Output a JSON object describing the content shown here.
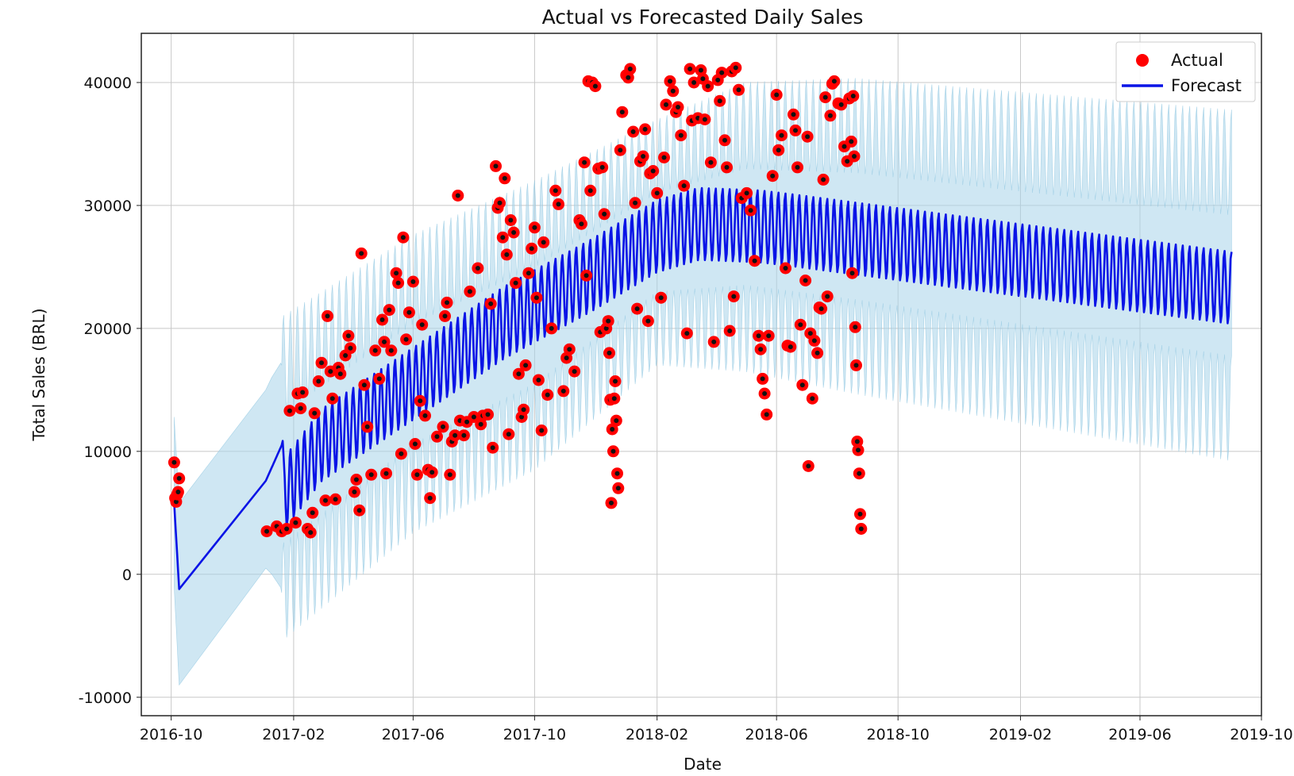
{
  "chart_data": {
    "type": "line",
    "title": "Actual vs Forecasted Daily Sales",
    "xlabel": "Date",
    "ylabel": "Total Sales (BRL)",
    "x_tick_labels": [
      "2016-10",
      "2017-02",
      "2017-06",
      "2017-10",
      "2018-02",
      "2018-06",
      "2018-10",
      "2019-02",
      "2019-06",
      "2019-10"
    ],
    "y_tick_labels": [
      "-10000",
      "0",
      "10000",
      "20000",
      "30000",
      "40000"
    ],
    "y_ticks": [
      -10000,
      0,
      10000,
      20000,
      30000,
      40000
    ],
    "xlim": [
      "2016-09-01",
      "2019-10-01"
    ],
    "ylim": [
      -11500,
      44000
    ],
    "grid": true,
    "legend_position": "top-right",
    "legend": [
      "Actual",
      "Forecast"
    ],
    "colors": {
      "actual_fill": "#ff0000",
      "actual_center": "#111111",
      "forecast_line": "#0a14e6",
      "interval_band": "#a8d4ea"
    },
    "series": [
      {
        "name": "Forecast",
        "kind": "line",
        "x": [
          "2016-10-04",
          "2016-10-09",
          "2017-01-04",
          "2017-01-20",
          "2017-01-22",
          "2017-03-01",
          "2017-06-01",
          "2017-09-01",
          "2017-11-20",
          "2017-12-01",
          "2018-02-01",
          "2018-03-15",
          "2018-05-15",
          "2018-06-15",
          "2018-08-20",
          "2019-09-01"
        ],
        "y": [
          5800,
          -1200,
          7600,
          10500,
          6500,
          10500,
          15500,
          20500,
          24000,
          24500,
          27500,
          28500,
          28300,
          28000,
          27300,
          23300
        ],
        "weekly_amplitude": 3000
      },
      {
        "name": "Uncertainty interval",
        "kind": "band",
        "x": [
          "2016-10-04",
          "2016-10-09",
          "2017-01-04",
          "2017-01-20",
          "2017-06-01",
          "2017-10-01",
          "2018-02-01",
          "2018-05-01",
          "2018-08-20",
          "2019-09-01"
        ],
        "upper": [
          12800,
          5800,
          15000,
          17000,
          24000,
          28500,
          34000,
          36500,
          36500,
          33500
        ],
        "lower": [
          -1000,
          -9000,
          500,
          -1500,
          7000,
          12000,
          20000,
          20000,
          18500,
          13500
        ]
      },
      {
        "name": "Actual",
        "kind": "scatter",
        "points": [
          [
            "2016-10-04",
            9100
          ],
          [
            "2016-10-05",
            6200
          ],
          [
            "2016-10-06",
            5900
          ],
          [
            "2016-10-07",
            6500
          ],
          [
            "2016-10-08",
            6700
          ],
          [
            "2016-10-09",
            7800
          ],
          [
            "2017-01-05",
            3500
          ],
          [
            "2017-01-15",
            3900
          ],
          [
            "2017-01-20",
            3500
          ],
          [
            "2017-01-25",
            3700
          ],
          [
            "2017-01-28",
            13300
          ],
          [
            "2017-02-03",
            4200
          ],
          [
            "2017-02-05",
            14700
          ],
          [
            "2017-02-08",
            13500
          ],
          [
            "2017-02-10",
            14800
          ],
          [
            "2017-02-15",
            3700
          ],
          [
            "2017-02-18",
            3400
          ],
          [
            "2017-02-20",
            5000
          ],
          [
            "2017-02-22",
            13100
          ],
          [
            "2017-02-26",
            15700
          ],
          [
            "2017-03-01",
            17200
          ],
          [
            "2017-03-05",
            6000
          ],
          [
            "2017-03-07",
            21000
          ],
          [
            "2017-03-10",
            16500
          ],
          [
            "2017-03-12",
            14300
          ],
          [
            "2017-03-15",
            6100
          ],
          [
            "2017-03-18",
            16800
          ],
          [
            "2017-03-20",
            16300
          ],
          [
            "2017-03-25",
            17800
          ],
          [
            "2017-03-28",
            19400
          ],
          [
            "2017-03-30",
            18400
          ],
          [
            "2017-04-03",
            6700
          ],
          [
            "2017-04-05",
            7700
          ],
          [
            "2017-04-08",
            5200
          ],
          [
            "2017-04-10",
            26100
          ],
          [
            "2017-04-13",
            15400
          ],
          [
            "2017-04-16",
            12000
          ],
          [
            "2017-04-20",
            8100
          ],
          [
            "2017-04-24",
            18200
          ],
          [
            "2017-04-28",
            15900
          ],
          [
            "2017-05-01",
            20700
          ],
          [
            "2017-05-03",
            18900
          ],
          [
            "2017-05-05",
            8200
          ],
          [
            "2017-05-08",
            21500
          ],
          [
            "2017-05-10",
            18200
          ],
          [
            "2017-05-15",
            24500
          ],
          [
            "2017-05-17",
            23700
          ],
          [
            "2017-05-20",
            9800
          ],
          [
            "2017-05-22",
            27400
          ],
          [
            "2017-05-25",
            19100
          ],
          [
            "2017-05-28",
            21300
          ],
          [
            "2017-06-01",
            23800
          ],
          [
            "2017-06-03",
            10600
          ],
          [
            "2017-06-05",
            8100
          ],
          [
            "2017-06-08",
            14100
          ],
          [
            "2017-06-10",
            20300
          ],
          [
            "2017-06-13",
            12900
          ],
          [
            "2017-06-16",
            8500
          ],
          [
            "2017-06-18",
            6200
          ],
          [
            "2017-06-20",
            8300
          ],
          [
            "2017-06-25",
            11200
          ],
          [
            "2017-07-01",
            12000
          ],
          [
            "2017-07-03",
            21000
          ],
          [
            "2017-07-05",
            22100
          ],
          [
            "2017-07-08",
            8100
          ],
          [
            "2017-07-10",
            10800
          ],
          [
            "2017-07-13",
            11300
          ],
          [
            "2017-07-16",
            30800
          ],
          [
            "2017-07-18",
            12500
          ],
          [
            "2017-07-22",
            11300
          ],
          [
            "2017-07-25",
            12400
          ],
          [
            "2017-07-28",
            23000
          ],
          [
            "2017-08-01",
            12800
          ],
          [
            "2017-08-05",
            24900
          ],
          [
            "2017-08-08",
            12200
          ],
          [
            "2017-08-10",
            12900
          ],
          [
            "2017-08-15",
            13000
          ],
          [
            "2017-08-18",
            22000
          ],
          [
            "2017-08-20",
            10300
          ],
          [
            "2017-08-23",
            33200
          ],
          [
            "2017-08-25",
            29800
          ],
          [
            "2017-08-27",
            30200
          ],
          [
            "2017-08-30",
            27400
          ],
          [
            "2017-09-01",
            32200
          ],
          [
            "2017-09-03",
            26000
          ],
          [
            "2017-09-05",
            11400
          ],
          [
            "2017-09-07",
            28800
          ],
          [
            "2017-09-10",
            27800
          ],
          [
            "2017-09-12",
            23700
          ],
          [
            "2017-09-15",
            16300
          ],
          [
            "2017-09-18",
            12800
          ],
          [
            "2017-09-20",
            13400
          ],
          [
            "2017-09-22",
            17000
          ],
          [
            "2017-09-25",
            24500
          ],
          [
            "2017-09-28",
            26500
          ],
          [
            "2017-10-01",
            28200
          ],
          [
            "2017-10-03",
            22500
          ],
          [
            "2017-10-05",
            15800
          ],
          [
            "2017-10-08",
            11700
          ],
          [
            "2017-10-10",
            27000
          ],
          [
            "2017-10-14",
            14600
          ],
          [
            "2017-10-18",
            20000
          ],
          [
            "2017-10-22",
            31200
          ],
          [
            "2017-10-25",
            30100
          ],
          [
            "2017-10-30",
            14900
          ],
          [
            "2017-11-02",
            17600
          ],
          [
            "2017-11-05",
            18300
          ],
          [
            "2017-11-10",
            16500
          ],
          [
            "2017-11-15",
            28800
          ],
          [
            "2017-11-17",
            28500
          ],
          [
            "2017-11-20",
            33500
          ],
          [
            "2017-11-22",
            24300
          ],
          [
            "2017-11-24",
            40100
          ],
          [
            "2017-11-26",
            31200
          ],
          [
            "2017-11-28",
            40000
          ],
          [
            "2017-12-01",
            39700
          ],
          [
            "2017-12-04",
            33000
          ],
          [
            "2017-12-06",
            19700
          ],
          [
            "2017-12-08",
            33100
          ],
          [
            "2017-12-10",
            29300
          ],
          [
            "2017-12-12",
            20000
          ],
          [
            "2017-12-14",
            20600
          ],
          [
            "2017-12-15",
            18000
          ],
          [
            "2017-12-16",
            14200
          ],
          [
            "2017-12-17",
            5800
          ],
          [
            "2017-12-18",
            11800
          ],
          [
            "2017-12-19",
            10000
          ],
          [
            "2017-12-20",
            14300
          ],
          [
            "2017-12-21",
            15700
          ],
          [
            "2017-12-22",
            12500
          ],
          [
            "2017-12-23",
            8200
          ],
          [
            "2017-12-24",
            7000
          ],
          [
            "2017-12-26",
            34500
          ],
          [
            "2017-12-28",
            37600
          ],
          [
            "2018-01-01",
            40600
          ],
          [
            "2018-01-03",
            40400
          ],
          [
            "2018-01-05",
            41100
          ],
          [
            "2018-01-08",
            36000
          ],
          [
            "2018-01-10",
            30200
          ],
          [
            "2018-01-12",
            21600
          ],
          [
            "2018-01-15",
            33600
          ],
          [
            "2018-01-18",
            34000
          ],
          [
            "2018-01-20",
            36200
          ],
          [
            "2018-01-23",
            20600
          ],
          [
            "2018-01-25",
            32600
          ],
          [
            "2018-01-28",
            32800
          ],
          [
            "2018-02-01",
            31000
          ],
          [
            "2018-02-05",
            22500
          ],
          [
            "2018-02-08",
            33900
          ],
          [
            "2018-02-10",
            38200
          ],
          [
            "2018-02-14",
            40100
          ],
          [
            "2018-02-17",
            39300
          ],
          [
            "2018-02-20",
            37600
          ],
          [
            "2018-02-22",
            38000
          ],
          [
            "2018-02-25",
            35700
          ],
          [
            "2018-02-28",
            31600
          ],
          [
            "2018-03-03",
            19600
          ],
          [
            "2018-03-06",
            41100
          ],
          [
            "2018-03-08",
            36900
          ],
          [
            "2018-03-10",
            40000
          ],
          [
            "2018-03-14",
            37100
          ],
          [
            "2018-03-17",
            41000
          ],
          [
            "2018-03-19",
            40300
          ],
          [
            "2018-03-21",
            37000
          ],
          [
            "2018-03-24",
            39700
          ],
          [
            "2018-03-27",
            33500
          ],
          [
            "2018-03-30",
            18900
          ],
          [
            "2018-04-03",
            40200
          ],
          [
            "2018-04-05",
            38500
          ],
          [
            "2018-04-07",
            40800
          ],
          [
            "2018-04-10",
            35300
          ],
          [
            "2018-04-12",
            33100
          ],
          [
            "2018-04-15",
            19800
          ],
          [
            "2018-04-17",
            40900
          ],
          [
            "2018-04-19",
            22600
          ],
          [
            "2018-04-21",
            41200
          ],
          [
            "2018-04-24",
            39400
          ],
          [
            "2018-04-27",
            30600
          ],
          [
            "2018-05-02",
            31000
          ],
          [
            "2018-05-06",
            29600
          ],
          [
            "2018-05-10",
            25500
          ],
          [
            "2018-05-14",
            19400
          ],
          [
            "2018-05-16",
            18300
          ],
          [
            "2018-05-18",
            15900
          ],
          [
            "2018-05-20",
            14700
          ],
          [
            "2018-05-22",
            13000
          ],
          [
            "2018-05-24",
            19400
          ],
          [
            "2018-05-28",
            32400
          ],
          [
            "2018-06-01",
            39000
          ],
          [
            "2018-06-03",
            34500
          ],
          [
            "2018-06-06",
            35700
          ],
          [
            "2018-06-10",
            24900
          ],
          [
            "2018-06-12",
            18600
          ],
          [
            "2018-06-15",
            18500
          ],
          [
            "2018-06-18",
            37400
          ],
          [
            "2018-06-20",
            36100
          ],
          [
            "2018-06-22",
            33100
          ],
          [
            "2018-06-25",
            20300
          ],
          [
            "2018-06-27",
            15400
          ],
          [
            "2018-06-30",
            23900
          ],
          [
            "2018-07-02",
            35600
          ],
          [
            "2018-07-03",
            8800
          ],
          [
            "2018-07-05",
            19600
          ],
          [
            "2018-07-07",
            14300
          ],
          [
            "2018-07-09",
            19000
          ],
          [
            "2018-07-12",
            18000
          ],
          [
            "2018-07-14",
            21700
          ],
          [
            "2018-07-16",
            21600
          ],
          [
            "2018-07-18",
            32100
          ],
          [
            "2018-07-20",
            38800
          ],
          [
            "2018-07-22",
            22600
          ],
          [
            "2018-07-25",
            37300
          ],
          [
            "2018-07-27",
            39900
          ],
          [
            "2018-07-29",
            40100
          ],
          [
            "2018-08-02",
            38300
          ],
          [
            "2018-08-05",
            38200
          ],
          [
            "2018-08-08",
            34800
          ],
          [
            "2018-08-11",
            33600
          ],
          [
            "2018-08-13",
            38700
          ],
          [
            "2018-08-15",
            35200
          ],
          [
            "2018-08-16",
            24500
          ],
          [
            "2018-08-17",
            38900
          ],
          [
            "2018-08-18",
            34000
          ],
          [
            "2018-08-19",
            20100
          ],
          [
            "2018-08-20",
            17000
          ],
          [
            "2018-08-21",
            10800
          ],
          [
            "2018-08-22",
            10100
          ],
          [
            "2018-08-23",
            8200
          ],
          [
            "2018-08-24",
            4900
          ],
          [
            "2018-08-25",
            3700
          ]
        ]
      }
    ]
  }
}
